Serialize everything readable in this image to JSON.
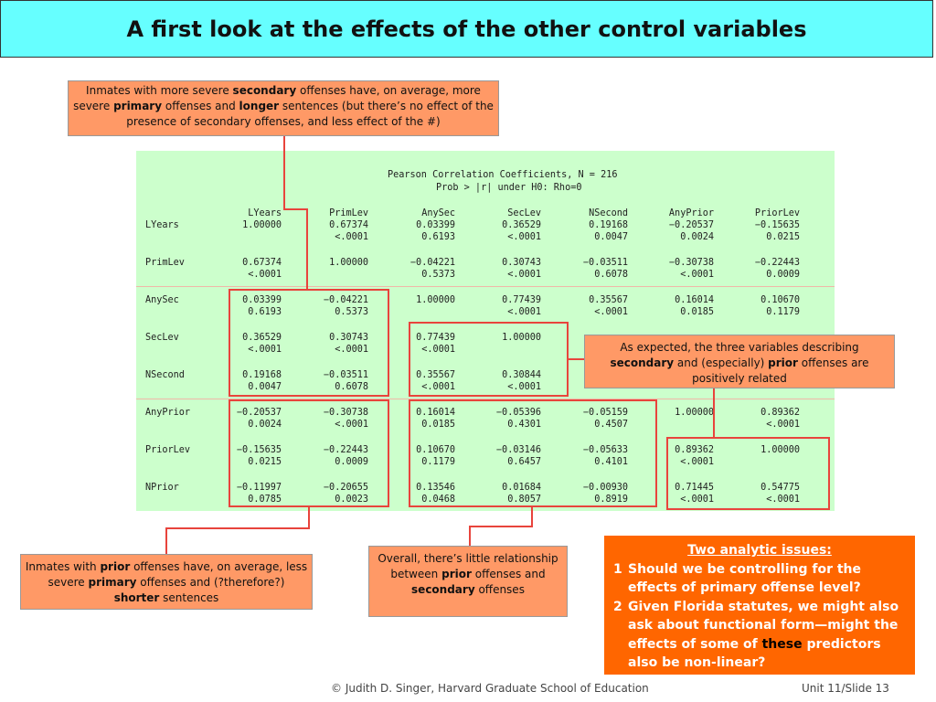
{
  "title": "A first look at the effects of the other control variables",
  "output": {
    "heading": "Pearson Correlation Coefficients, N = 216",
    "subheading": "Prob > |r| under H0: Rho=0",
    "columns": [
      "LYears",
      "PrimLev",
      "AnySec",
      "SecLev",
      "NSecond",
      "AnyPrior",
      "PriorLev"
    ],
    "rows": [
      {
        "name": "LYears",
        "r": [
          "1.00000",
          "0.67374",
          "0.03399",
          "0.36529",
          "0.19168",
          "−0.20537",
          "−0.15635"
        ],
        "p": [
          "",
          "<.0001",
          "0.6193",
          "<.0001",
          "0.0047",
          "0.0024",
          "0.0215"
        ]
      },
      {
        "name": "PrimLev",
        "r": [
          "0.67374",
          "1.00000",
          "−0.04221",
          "0.30743",
          "−0.03511",
          "−0.30738",
          "−0.22443"
        ],
        "p": [
          "<.0001",
          "",
          "0.5373",
          "<.0001",
          "0.6078",
          "<.0001",
          "0.0009"
        ]
      },
      {
        "name": "AnySec",
        "r": [
          "0.03399",
          "−0.04221",
          "1.00000",
          "0.77439",
          "0.35567",
          "0.16014",
          "0.10670"
        ],
        "p": [
          "0.6193",
          "0.5373",
          "",
          "<.0001",
          "<.0001",
          "0.0185",
          "0.1179"
        ]
      },
      {
        "name": "SecLev",
        "r": [
          "0.36529",
          "0.30743",
          "0.77439",
          "1.00000",
          "",
          "",
          ""
        ],
        "p": [
          "<.0001",
          "<.0001",
          "<.0001",
          "",
          "",
          "",
          ""
        ]
      },
      {
        "name": "NSecond",
        "r": [
          "0.19168",
          "−0.03511",
          "0.35567",
          "0.30844",
          "",
          "",
          ""
        ],
        "p": [
          "0.0047",
          "0.6078",
          "<.0001",
          "<.0001",
          "",
          "",
          ""
        ]
      },
      {
        "name": "AnyPrior",
        "r": [
          "−0.20537",
          "−0.30738",
          "0.16014",
          "−0.05396",
          "−0.05159",
          "1.00000",
          "0.89362"
        ],
        "p": [
          "0.0024",
          "<.0001",
          "0.0185",
          "0.4301",
          "0.4507",
          "",
          "<.0001"
        ]
      },
      {
        "name": "PriorLev",
        "r": [
          "−0.15635",
          "−0.22443",
          "0.10670",
          "−0.03146",
          "−0.05633",
          "0.89362",
          "1.00000"
        ],
        "p": [
          "0.0215",
          "0.0009",
          "0.1179",
          "0.6457",
          "0.4101",
          "<.0001",
          ""
        ]
      },
      {
        "name": "NPrior",
        "r": [
          "−0.11997",
          "−0.20655",
          "0.13546",
          "0.01684",
          "−0.00930",
          "0.71445",
          "0.54775"
        ],
        "p": [
          "0.0785",
          "0.0023",
          "0.0468",
          "0.8057",
          "0.8919",
          "<.0001",
          "<.0001"
        ]
      }
    ]
  },
  "callouts": {
    "secondary": "Inmates with more severe <b>secondary</b> offenses have, on average, more severe <b>primary</b> offenses and <b>longer</b> sentences (but there’s no effect of the presence of secondary offenses, and less effect of the #)",
    "expected": "As expected, the three variables describing <b>secondary</b> and (especially) <b>prior</b> offenses are positively related",
    "prior": "Inmates with <b>prior</b> offenses have, on average, less severe <b>primary</b> offenses and (?therefore?) <b>shorter</b> sentences",
    "overall": "Overall, there’s little relationship between <b>prior</b> offenses and <b>secondary</b> offenses"
  },
  "issues": {
    "heading": "Two analytic issues:",
    "items": [
      {
        "num": "1",
        "text": "Should we be controlling for the effects of primary offense level?"
      },
      {
        "num": "2",
        "before": "Given Florida statutes, we might also ask about functional form—might the effects of some of ",
        "emph": "these",
        "after": " predictors also be non-linear?"
      }
    ]
  },
  "footer": {
    "credit": "© Judith D. Singer, Harvard Graduate School of Education",
    "slide": "Unit 11/Slide 13"
  }
}
